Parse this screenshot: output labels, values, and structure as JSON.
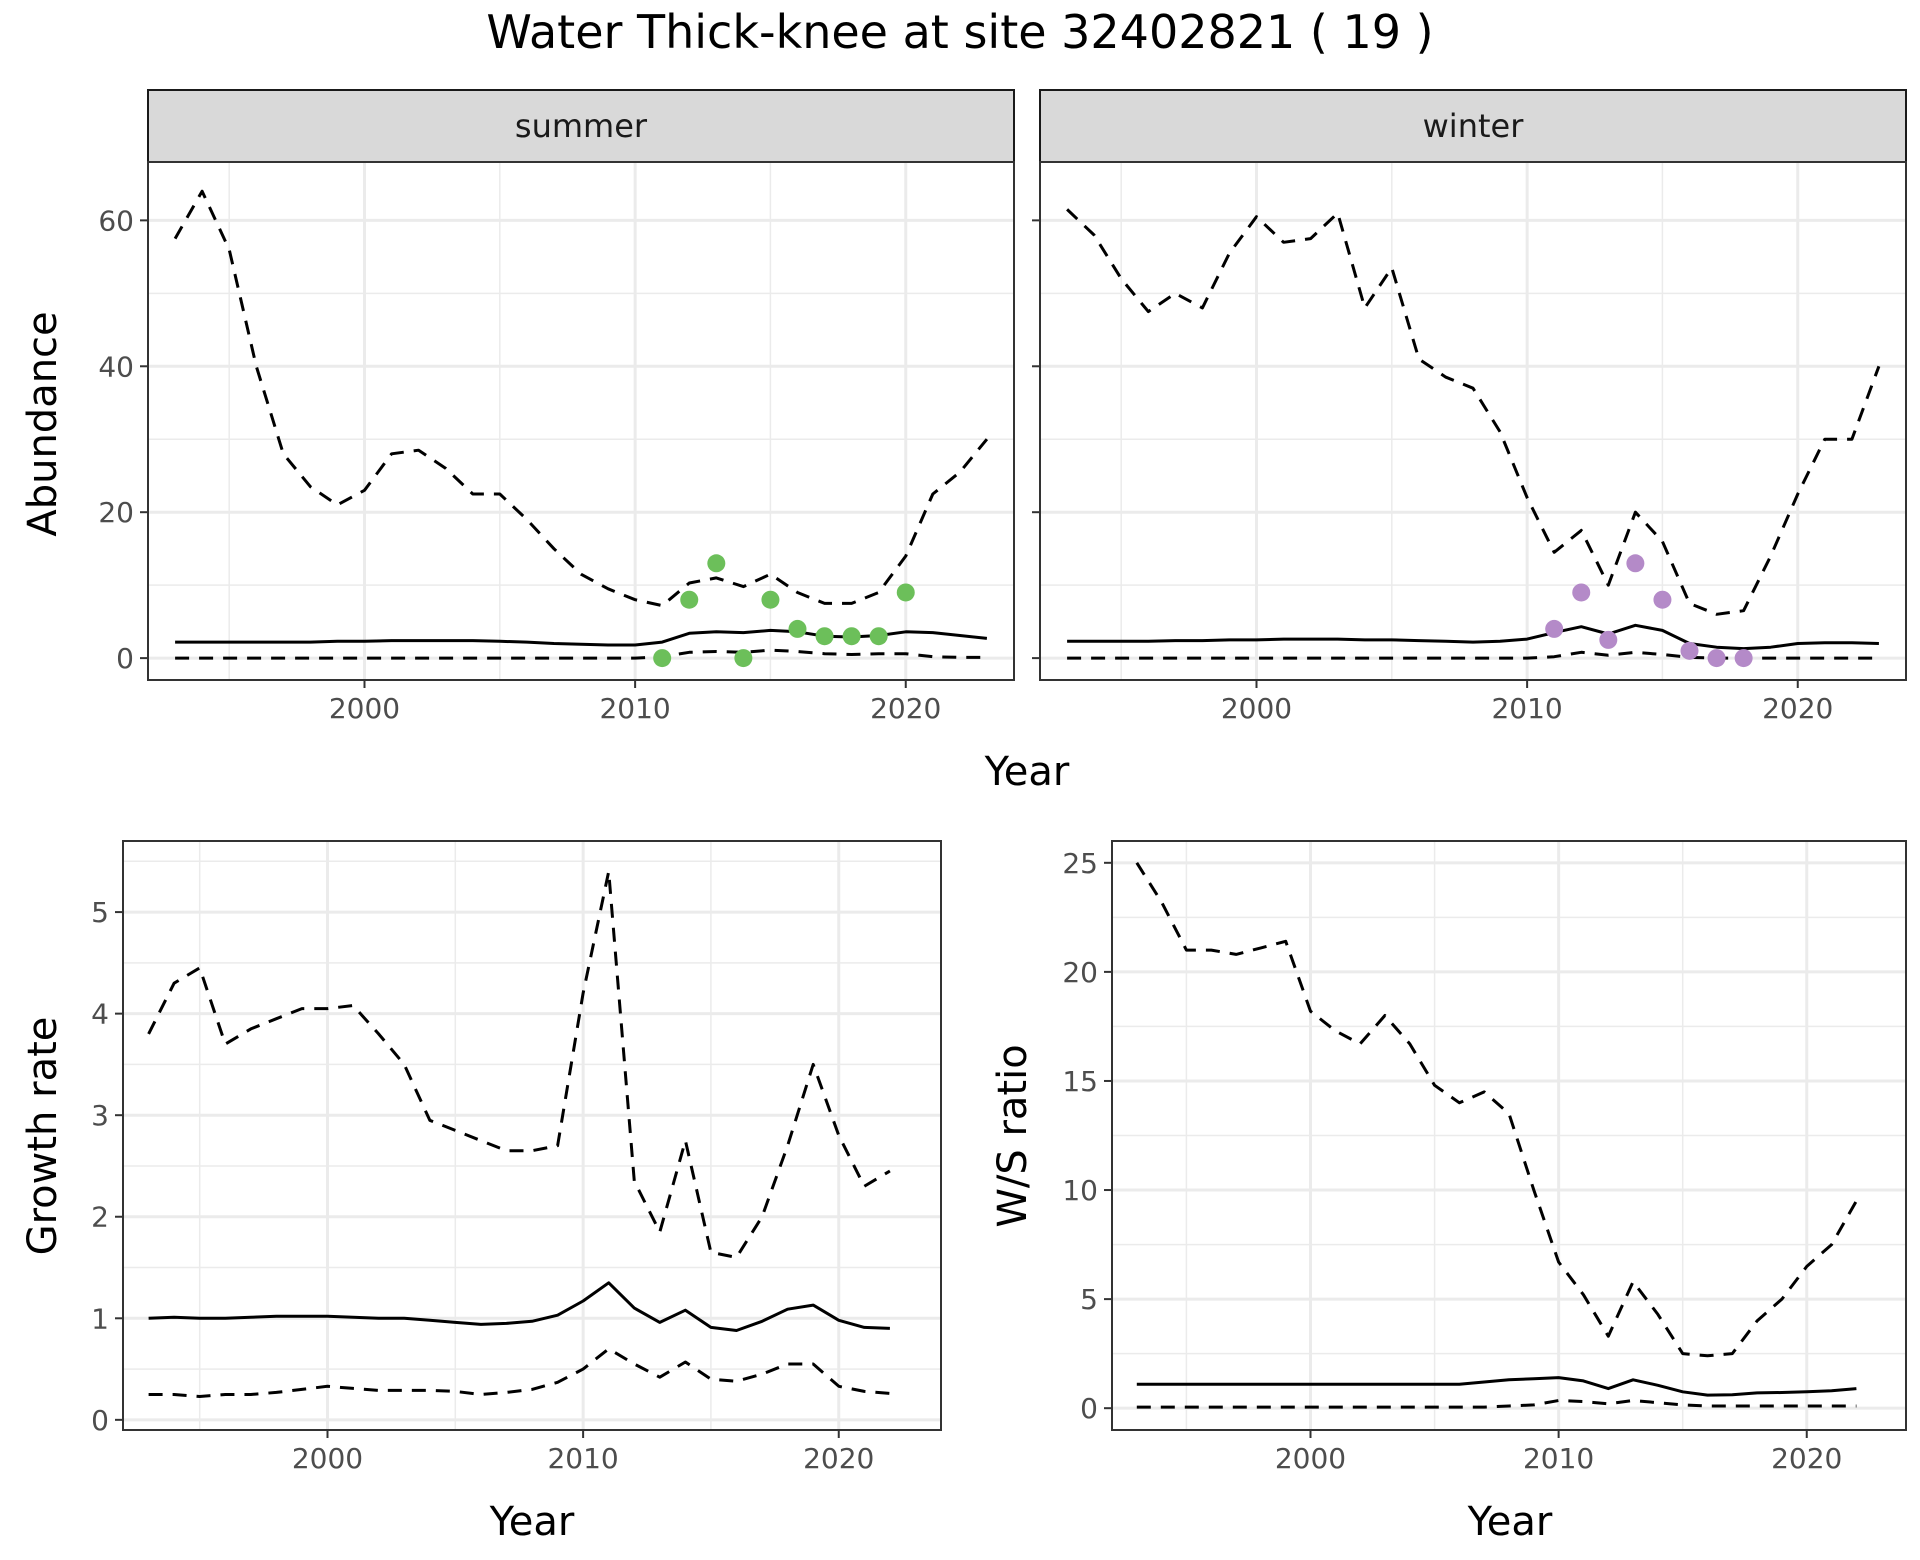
{
  "title": "Water Thick-knee at site 32402821 ( 19 )",
  "colors": {
    "summer_points": "#6cbf5a",
    "winter_points": "#b48ac8",
    "line": "#000000"
  },
  "chart_data": [
    {
      "type": "line",
      "panel": "summer",
      "xlabel": "Year",
      "ylabel": "Abundance",
      "xlim": [
        1992,
        2024
      ],
      "ylim": [
        -3,
        68
      ],
      "xticks": [
        2000,
        2010,
        2020
      ],
      "yticks": [
        0,
        20,
        40,
        60
      ],
      "grid": true,
      "series": [
        {
          "style": "dashed",
          "x": [
            1993,
            1994,
            1995,
            1996,
            1997,
            1998,
            1999,
            2000,
            2001,
            2002,
            2003,
            2004,
            2005,
            2006,
            2007,
            2008,
            2009,
            2010,
            2011,
            2012,
            2013,
            2014,
            2015,
            2016,
            2017,
            2018,
            2019,
            2020,
            2021,
            2022,
            2023
          ],
          "y": [
            57.5,
            64,
            56,
            40,
            28,
            23.5,
            21,
            23,
            28,
            28.5,
            26,
            22.5,
            22.5,
            19,
            15,
            11.5,
            9.5,
            8,
            7.2,
            10.3,
            11,
            9.8,
            11.5,
            9,
            7.5,
            7.5,
            9,
            14,
            22.5,
            25.5,
            30
          ]
        },
        {
          "style": "solid",
          "x": [
            1993,
            1994,
            1995,
            1996,
            1997,
            1998,
            1999,
            2000,
            2001,
            2002,
            2003,
            2004,
            2005,
            2006,
            2007,
            2008,
            2009,
            2010,
            2011,
            2012,
            2013,
            2014,
            2015,
            2016,
            2017,
            2018,
            2019,
            2020,
            2021,
            2022,
            2023
          ],
          "y": [
            2.2,
            2.2,
            2.2,
            2.2,
            2.2,
            2.2,
            2.3,
            2.3,
            2.4,
            2.4,
            2.4,
            2.4,
            2.3,
            2.2,
            2.0,
            1.9,
            1.8,
            1.8,
            2.2,
            3.4,
            3.6,
            3.5,
            3.8,
            3.6,
            3.0,
            2.9,
            3.1,
            3.6,
            3.5,
            3.1,
            2.7
          ]
        },
        {
          "style": "dashed",
          "x": [
            1993,
            1994,
            1995,
            1996,
            1997,
            1998,
            1999,
            2000,
            2001,
            2002,
            2003,
            2004,
            2005,
            2006,
            2007,
            2008,
            2009,
            2010,
            2011,
            2012,
            2013,
            2014,
            2015,
            2016,
            2017,
            2018,
            2019,
            2020,
            2021,
            2022,
            2023
          ],
          "y": [
            0,
            0,
            0,
            0,
            0,
            0,
            0,
            0,
            0,
            0,
            0,
            0,
            0,
            0,
            0,
            0,
            0,
            0,
            0.2,
            0.8,
            0.9,
            0.8,
            1.1,
            0.9,
            0.6,
            0.5,
            0.6,
            0.6,
            0.2,
            0.1,
            0.1
          ]
        },
        {
          "style": "points",
          "x": [
            2011,
            2012,
            2013,
            2014,
            2015,
            2016,
            2017,
            2018,
            2019,
            2020
          ],
          "y": [
            0,
            8,
            13,
            0,
            8,
            4,
            3,
            3,
            3,
            9
          ]
        }
      ]
    },
    {
      "type": "line",
      "panel": "winter",
      "xlabel": "Year",
      "ylabel": "Abundance",
      "xlim": [
        1992,
        2024
      ],
      "ylim": [
        -3,
        68
      ],
      "xticks": [
        2000,
        2010,
        2020
      ],
      "yticks": [
        0,
        20,
        40,
        60
      ],
      "grid": true,
      "series": [
        {
          "style": "dashed",
          "x": [
            1993,
            1994,
            1995,
            1996,
            1997,
            1998,
            1999,
            2000,
            2001,
            2002,
            2003,
            2004,
            2005,
            2006,
            2007,
            2008,
            2009,
            2010,
            2011,
            2012,
            2013,
            2014,
            2015,
            2016,
            2017,
            2018,
            2019,
            2020,
            2021,
            2022,
            2023
          ],
          "y": [
            61.5,
            58,
            52,
            47.5,
            50,
            48,
            55.5,
            60.5,
            57,
            57.5,
            61,
            48,
            53.5,
            41,
            38.5,
            37,
            31,
            22,
            14.5,
            17.5,
            10,
            20,
            16,
            7.5,
            6,
            6.5,
            14,
            22.5,
            30,
            30,
            40
          ]
        },
        {
          "style": "solid",
          "x": [
            1993,
            1994,
            1995,
            1996,
            1997,
            1998,
            1999,
            2000,
            2001,
            2002,
            2003,
            2004,
            2005,
            2006,
            2007,
            2008,
            2009,
            2010,
            2011,
            2012,
            2013,
            2014,
            2015,
            2016,
            2017,
            2018,
            2019,
            2020,
            2021,
            2022,
            2023
          ],
          "y": [
            2.3,
            2.3,
            2.3,
            2.3,
            2.4,
            2.4,
            2.5,
            2.5,
            2.6,
            2.6,
            2.6,
            2.5,
            2.5,
            2.4,
            2.3,
            2.2,
            2.3,
            2.6,
            3.5,
            4.3,
            3.3,
            4.5,
            3.8,
            2.0,
            1.5,
            1.3,
            1.5,
            2.0,
            2.1,
            2.1,
            2.0
          ]
        },
        {
          "style": "dashed",
          "x": [
            1993,
            1994,
            1995,
            1996,
            1997,
            1998,
            1999,
            2000,
            2001,
            2002,
            2003,
            2004,
            2005,
            2006,
            2007,
            2008,
            2009,
            2010,
            2011,
            2012,
            2013,
            2014,
            2015,
            2016,
            2017,
            2018,
            2019,
            2020,
            2021,
            2022,
            2023
          ],
          "y": [
            0,
            0,
            0,
            0,
            0,
            0,
            0,
            0,
            0,
            0,
            0,
            0,
            0,
            0,
            0,
            0,
            0,
            0,
            0.2,
            0.8,
            0.4,
            0.8,
            0.5,
            0.1,
            0,
            0,
            0,
            0,
            0,
            0,
            0
          ]
        },
        {
          "style": "points",
          "x": [
            2011,
            2012,
            2013,
            2014,
            2015,
            2016,
            2017,
            2018
          ],
          "y": [
            4,
            9,
            2.5,
            13,
            8,
            1,
            0,
            0
          ]
        }
      ]
    },
    {
      "type": "line",
      "panel": "growth",
      "xlabel": "Year",
      "ylabel": "Growth rate",
      "xlim": [
        1992,
        2024
      ],
      "ylim": [
        -0.1,
        5.7
      ],
      "xticks": [
        2000,
        2010,
        2020
      ],
      "yticks": [
        0,
        1,
        2,
        3,
        4,
        5
      ],
      "grid": true,
      "series": [
        {
          "style": "dashed",
          "x": [
            1993,
            1994,
            1995,
            1996,
            1997,
            1998,
            1999,
            2000,
            2001,
            2002,
            2003,
            2004,
            2005,
            2006,
            2007,
            2008,
            2009,
            2010,
            2011,
            2012,
            2013,
            2014,
            2015,
            2016,
            2017,
            2018,
            2019,
            2020,
            2021,
            2022
          ],
          "y": [
            3.8,
            4.3,
            4.45,
            3.7,
            3.85,
            3.95,
            4.05,
            4.05,
            4.08,
            3.8,
            3.5,
            2.95,
            2.85,
            2.75,
            2.65,
            2.65,
            2.7,
            4.2,
            5.4,
            2.35,
            1.85,
            2.75,
            1.65,
            1.6,
            2.0,
            2.7,
            3.5,
            2.8,
            2.3,
            2.45
          ]
        },
        {
          "style": "solid",
          "x": [
            1993,
            1994,
            1995,
            1996,
            1997,
            1998,
            1999,
            2000,
            2001,
            2002,
            2003,
            2004,
            2005,
            2006,
            2007,
            2008,
            2009,
            2010,
            2011,
            2012,
            2013,
            2014,
            2015,
            2016,
            2017,
            2018,
            2019,
            2020,
            2021,
            2022
          ],
          "y": [
            1.0,
            1.01,
            1.0,
            1.0,
            1.01,
            1.02,
            1.02,
            1.02,
            1.01,
            1.0,
            1.0,
            0.98,
            0.96,
            0.94,
            0.95,
            0.97,
            1.03,
            1.17,
            1.35,
            1.1,
            0.96,
            1.08,
            0.91,
            0.88,
            0.97,
            1.09,
            1.13,
            0.98,
            0.91,
            0.9
          ]
        },
        {
          "style": "dashed",
          "x": [
            1993,
            1994,
            1995,
            1996,
            1997,
            1998,
            1999,
            2000,
            2001,
            2002,
            2003,
            2004,
            2005,
            2006,
            2007,
            2008,
            2009,
            2010,
            2011,
            2012,
            2013,
            2014,
            2015,
            2016,
            2017,
            2018,
            2019,
            2020,
            2021,
            2022
          ],
          "y": [
            0.25,
            0.25,
            0.23,
            0.25,
            0.25,
            0.27,
            0.3,
            0.33,
            0.31,
            0.29,
            0.29,
            0.29,
            0.28,
            0.25,
            0.27,
            0.3,
            0.37,
            0.5,
            0.7,
            0.55,
            0.42,
            0.57,
            0.4,
            0.38,
            0.45,
            0.55,
            0.55,
            0.33,
            0.28,
            0.26
          ]
        }
      ]
    },
    {
      "type": "line",
      "panel": "ratio",
      "xlabel": "Year",
      "ylabel": "W/S ratio",
      "xlim": [
        1992,
        2024
      ],
      "ylim": [
        -1,
        26
      ],
      "xticks": [
        2000,
        2010,
        2020
      ],
      "yticks": [
        0,
        5,
        10,
        15,
        20,
        25
      ],
      "grid": true,
      "series": [
        {
          "style": "dashed",
          "x": [
            1993,
            1994,
            1995,
            1996,
            1997,
            1998,
            1999,
            2000,
            2001,
            2002,
            2003,
            2004,
            2005,
            2006,
            2007,
            2008,
            2009,
            2010,
            2011,
            2012,
            2013,
            2014,
            2015,
            2016,
            2017,
            2018,
            2019,
            2020,
            2021,
            2022
          ],
          "y": [
            25,
            23.2,
            21,
            21,
            20.8,
            21.1,
            21.4,
            18.2,
            17.3,
            16.7,
            18,
            16.7,
            14.8,
            14,
            14.5,
            13.5,
            10,
            6.7,
            5.2,
            3.3,
            5.8,
            4.3,
            2.5,
            2.4,
            2.5,
            4,
            5,
            6.5,
            7.5,
            9.5
          ]
        },
        {
          "style": "solid",
          "x": [
            1993,
            1994,
            1995,
            1996,
            1997,
            1998,
            1999,
            2000,
            2001,
            2002,
            2003,
            2004,
            2005,
            2006,
            2007,
            2008,
            2009,
            2010,
            2011,
            2012,
            2013,
            2014,
            2015,
            2016,
            2017,
            2018,
            2019,
            2020,
            2021,
            2022
          ],
          "y": [
            1.1,
            1.1,
            1.1,
            1.1,
            1.1,
            1.1,
            1.1,
            1.1,
            1.1,
            1.1,
            1.1,
            1.1,
            1.1,
            1.1,
            1.2,
            1.3,
            1.35,
            1.4,
            1.25,
            0.9,
            1.3,
            1.05,
            0.75,
            0.6,
            0.62,
            0.7,
            0.72,
            0.75,
            0.8,
            0.9
          ]
        },
        {
          "style": "dashed",
          "x": [
            1993,
            1994,
            1995,
            1996,
            1997,
            1998,
            1999,
            2000,
            2001,
            2002,
            2003,
            2004,
            2005,
            2006,
            2007,
            2008,
            2009,
            2010,
            2011,
            2012,
            2013,
            2014,
            2015,
            2016,
            2017,
            2018,
            2019,
            2020,
            2021,
            2022
          ],
          "y": [
            0.05,
            0.05,
            0.05,
            0.05,
            0.05,
            0.05,
            0.05,
            0.05,
            0.05,
            0.05,
            0.05,
            0.05,
            0.05,
            0.05,
            0.05,
            0.1,
            0.15,
            0.35,
            0.3,
            0.2,
            0.35,
            0.25,
            0.15,
            0.1,
            0.1,
            0.1,
            0.1,
            0.1,
            0.1,
            0.1
          ]
        }
      ]
    }
  ],
  "strips": {
    "summer": "summer",
    "winter": "winter"
  },
  "labels": {
    "top_xlabel": "Year",
    "top_ylabel": "Abundance",
    "growth_xlabel": "Year",
    "growth_ylabel": "Growth rate",
    "ratio_xlabel": "Year",
    "ratio_ylabel": "W/S ratio"
  }
}
